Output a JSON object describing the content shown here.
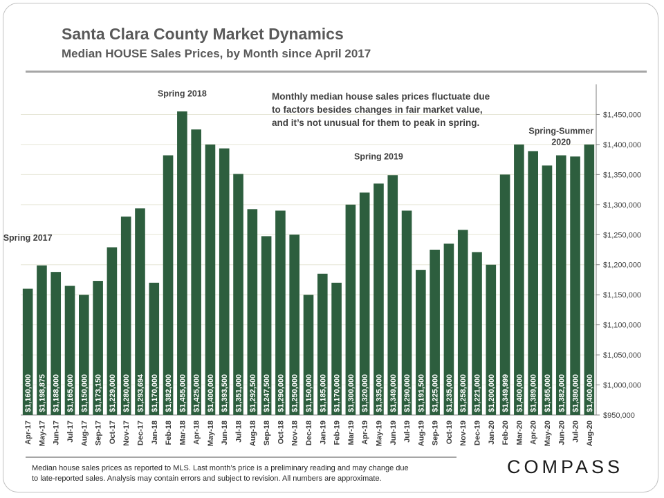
{
  "header": {
    "title": "Santa Clara County Market Dynamics",
    "subtitle": "Median HOUSE Sales Prices, by Month since April 2017"
  },
  "note": [
    "Monthly median house sales prices fluctuate due",
    "to factors besides changes in fair market value,",
    "and it’s not unusual for them to peak in spring."
  ],
  "footnote": [
    "Median house sales prices as reported to MLS. Last month’s price is a preliminary reading and may change due",
    "to late-reported sales. Analysis may contain errors and subject to revision. All numbers are approximate."
  ],
  "brand": {
    "logo_text": "COMPASS"
  },
  "colors": {
    "bar": "#2d5e3e",
    "axis_text": "#404040",
    "grid": "#e6e6d6"
  },
  "chart_data": {
    "type": "bar",
    "categories": [
      "Apr-17",
      "May-17",
      "Jun-17",
      "Jul-17",
      "Aug-17",
      "Sep-17",
      "Oct-17",
      "Nov-17",
      "Dec-17",
      "Jan-18",
      "Feb-18",
      "Mar-18",
      "Apr-18",
      "May-18",
      "Jun-18",
      "Jul-18",
      "Aug-18",
      "Sep-18",
      "Oct-18",
      "Nov-18",
      "Dec-18",
      "Jan-19",
      "Feb-19",
      "Mar-19",
      "Apr-19",
      "May-19",
      "Jun-19",
      "Jul-19",
      "Aug-19",
      "Sep-19",
      "Oct-19",
      "Nov-19",
      "Dec-19",
      "Jan-20",
      "Feb-20",
      "Mar-20",
      "Apr-20",
      "May-20",
      "Jun-20",
      "Jul-20",
      "Aug-20"
    ],
    "values": [
      1160000,
      1198875,
      1188000,
      1165000,
      1150000,
      1173150,
      1229000,
      1280000,
      1293694,
      1170000,
      1382000,
      1455000,
      1425000,
      1400000,
      1393500,
      1351000,
      1292500,
      1247500,
      1290000,
      1250000,
      1150000,
      1185000,
      1170000,
      1300000,
      1320000,
      1335000,
      1349000,
      1290000,
      1191500,
      1225000,
      1235000,
      1258000,
      1221000,
      1200000,
      1349999,
      1400000,
      1389000,
      1365000,
      1382000,
      1380000,
      1400000
    ],
    "data_labels": [
      "$1,160,000",
      "$1,198,875",
      "$1,188,000",
      "$1,165,000",
      "$1,150,000",
      "$1,173,150",
      "$1,229,000",
      "$1,280,000",
      "$1,293,694",
      "$1,170,000",
      "$1,382,000",
      "$1,455,000",
      "$1,425,000",
      "$1,400,000",
      "$1,393,500",
      "$1,351,000",
      "$1,292,500",
      "$1,247,500",
      "$1,290,000",
      "$1,250,000",
      "$1,150,000",
      "$1,185,000",
      "$1,170,000",
      "$1,300,000",
      "$1,320,000",
      "$1,335,000",
      "$1,349,000",
      "$1,290,000",
      "$1,191,500",
      "$1,225,000",
      "$1,235,000",
      "$1,258,000",
      "$1,221,000",
      "$1,200,000",
      "$1,349,999",
      "$1,400,000",
      "$1,389,000",
      "$1,365,000",
      "$1,382,000",
      "$1,380,000",
      "$1,400,000"
    ],
    "ylim": [
      950000,
      1500000
    ],
    "yticks": [
      950000,
      1000000,
      1050000,
      1100000,
      1150000,
      1200000,
      1250000,
      1300000,
      1350000,
      1400000,
      1450000
    ],
    "ytick_labels": [
      "$950,000",
      "$1,000,000",
      "$1,050,000",
      "$1,100,000",
      "$1,150,000",
      "$1,200,000",
      "$1,250,000",
      "$1,300,000",
      "$1,350,000",
      "$1,400,000",
      "$1,450,000"
    ],
    "yaxis_side": "right",
    "grid": true,
    "annotations": [
      {
        "lines": [
          "Spring 2017"
        ],
        "category": "Apr-17",
        "value": 1240000
      },
      {
        "lines": [
          "Spring 2018"
        ],
        "category": "Mar-18",
        "value": 1480000
      },
      {
        "lines": [
          "Spring 2019"
        ],
        "category": "May-19",
        "value": 1375000
      },
      {
        "lines": [
          "Spring-Summer",
          "2020"
        ],
        "category": "Jun-20",
        "value": 1418000
      }
    ]
  }
}
